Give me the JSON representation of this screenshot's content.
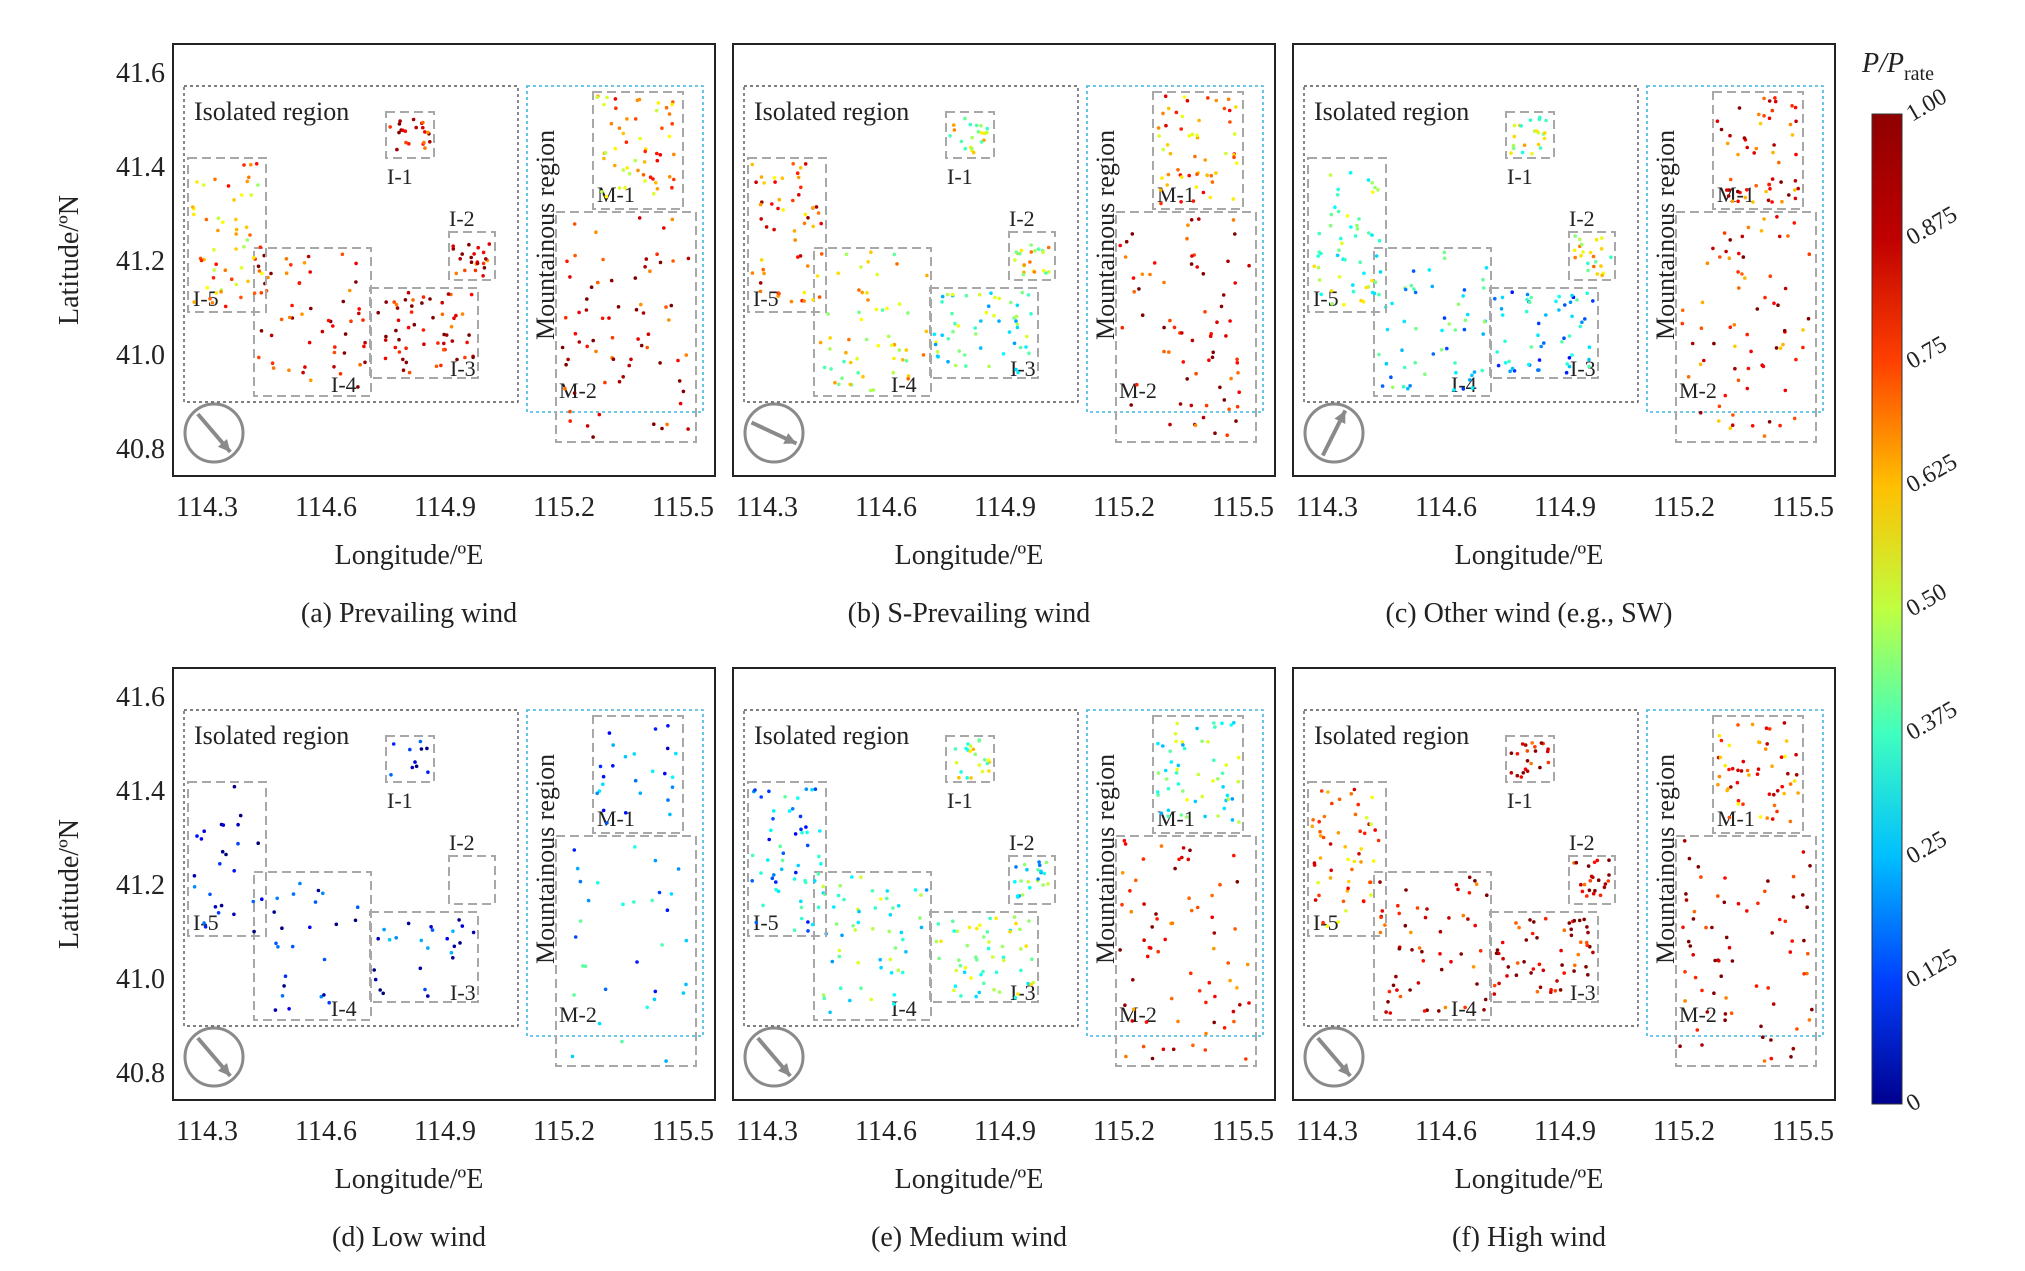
{
  "chart_data": {
    "type": "scatter",
    "description_role": "six-panel map of wind turbine normalized power",
    "colorbar": {
      "title_main": "P/P",
      "title_sub": "rate",
      "min": 0,
      "max": 1,
      "ticks": [
        "0",
        "0.125",
        "0.25",
        "0.375",
        "0.50",
        "0.625",
        "0.75",
        "0.875",
        "1.00"
      ],
      "colors": [
        "#00008f",
        "#0040ff",
        "#00bfff",
        "#40ffbf",
        "#bfff40",
        "#ffbf00",
        "#ff4000",
        "#bf0000",
        "#8f0000"
      ]
    },
    "axes": {
      "xlabel": "Longitude/ºE",
      "ylabel": "Latitude/ºN",
      "x_ticks": [
        "114.3",
        "114.6",
        "114.9",
        "115.2",
        "115.5"
      ],
      "y_ticks": [
        "41.6",
        "41.4",
        "41.2",
        "41.0",
        "40.8"
      ],
      "xlim": [
        114.3,
        115.5
      ],
      "ylim": [
        40.8,
        41.6
      ]
    },
    "region_labels": {
      "isolated": "Isolated region",
      "mountainous": "Mountainous region"
    },
    "subregions": [
      "I-1",
      "I-2",
      "I-3",
      "I-4",
      "I-5",
      "M-1",
      "M-2"
    ],
    "panels": [
      {
        "caption": "(a) Prevailing wind",
        "wind_dir": "NW",
        "levels": {
          "I-1": 0.9,
          "I-2": 0.9,
          "I-3": 0.9,
          "I-4": 0.88,
          "I-5": 0.7,
          "M-1": 0.72,
          "M-2": 0.9
        },
        "show_ylabel": true
      },
      {
        "caption": "(b) S-Prevailing wind",
        "wind_dir": "WNW",
        "levels": {
          "I-1": 0.6,
          "I-2": 0.6,
          "I-3": 0.45,
          "I-4": 0.6,
          "I-5": 0.8,
          "M-1": 0.75,
          "M-2": 0.9
        },
        "show_ylabel": false
      },
      {
        "caption": "(c) Other wind (e.g., SW)",
        "wind_dir": "SW",
        "levels": {
          "I-1": 0.55,
          "I-2": 0.6,
          "I-3": 0.3,
          "I-4": 0.35,
          "I-5": 0.5,
          "M-1": 0.85,
          "M-2": 0.85
        },
        "show_ylabel": false
      },
      {
        "caption": "(d) Low wind",
        "wind_dir": "NW",
        "levels": {
          "I-1": 0.1,
          "I-2": null,
          "I-3": 0.15,
          "I-4": 0.1,
          "I-5": 0.1,
          "M-1": 0.2,
          "M-2": 0.3
        },
        "show_ylabel": true
      },
      {
        "caption": "(e) Medium wind",
        "wind_dir": "NW",
        "levels": {
          "I-1": 0.55,
          "I-2": 0.4,
          "I-3": 0.5,
          "I-4": 0.45,
          "I-5": 0.3,
          "M-1": 0.45,
          "M-2": 0.88
        },
        "show_ylabel": false
      },
      {
        "caption": "(f) High wind",
        "wind_dir": "NW",
        "levels": {
          "I-1": 0.9,
          "I-2": 0.9,
          "I-3": 0.92,
          "I-4": 0.9,
          "I-5": 0.75,
          "M-1": 0.8,
          "M-2": 0.92
        },
        "show_ylabel": false
      }
    ]
  }
}
